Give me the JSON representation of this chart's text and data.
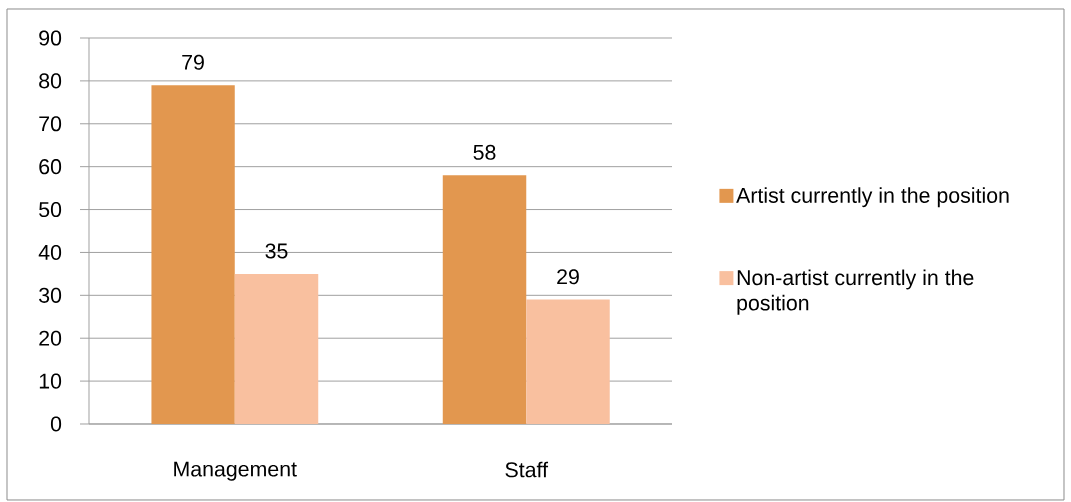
{
  "chart_data": {
    "type": "bar",
    "categories": [
      "Management",
      "Staff"
    ],
    "series": [
      {
        "name": "Artist currently in the position",
        "color": "#e2974f",
        "values": [
          79,
          58
        ]
      },
      {
        "name": "Non-artist currently in the position",
        "color": "#f9c09f",
        "values": [
          35,
          29
        ]
      }
    ],
    "ylim": [
      0,
      90
    ],
    "yticks": [
      0,
      10,
      20,
      30,
      40,
      50,
      60,
      70,
      80,
      90
    ],
    "grid": "y",
    "legend": "right",
    "data_labels": true
  }
}
